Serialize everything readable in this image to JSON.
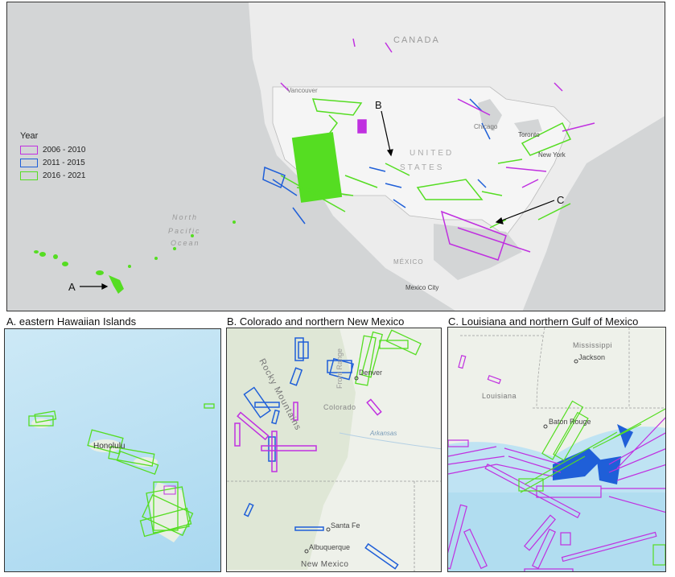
{
  "legend": {
    "title": "Year",
    "items": [
      {
        "label": "2006 - 2010",
        "color": "#c030e0"
      },
      {
        "label": "2011 - 2015",
        "color": "#1f5fd8"
      },
      {
        "label": "2016 - 2021",
        "color": "#55dd22"
      }
    ]
  },
  "main_map": {
    "labels": {
      "canada": "CANADA",
      "vancouver": "Vancouver",
      "us1": "UNITED",
      "us2": "STATES",
      "chicago": "Chicago",
      "toronto": "Toronto",
      "newyork": "New York",
      "mexico": "MÉXICO",
      "mexicocity": "Mexico City",
      "ocean1": "North",
      "ocean2": "Pacific",
      "ocean3": "Ocean"
    },
    "callouts": {
      "a": "A",
      "b": "B",
      "c": "C"
    }
  },
  "panels": {
    "a": {
      "caption": "A. eastern Hawaiian Islands",
      "labels": {
        "honolulu": "Honolulu"
      }
    },
    "b": {
      "caption": "B. Colorado and northern New Mexico",
      "labels": {
        "rocky": "Rocky Mountains",
        "front": "Front Range",
        "denver": "Denver",
        "colorado": "Colorado",
        "arkansas": "Arkansas",
        "santafe": "Santa Fe",
        "albuquerque": "Albuquerque",
        "newmexico": "New Mexico"
      }
    },
    "c": {
      "caption": "C. Louisiana and northern Gulf of Mexico",
      "labels": {
        "mississippi": "Mississippi",
        "jackson": "Jackson",
        "louisiana": "Louisiana",
        "batonrouge": "Baton Rouge"
      }
    }
  }
}
